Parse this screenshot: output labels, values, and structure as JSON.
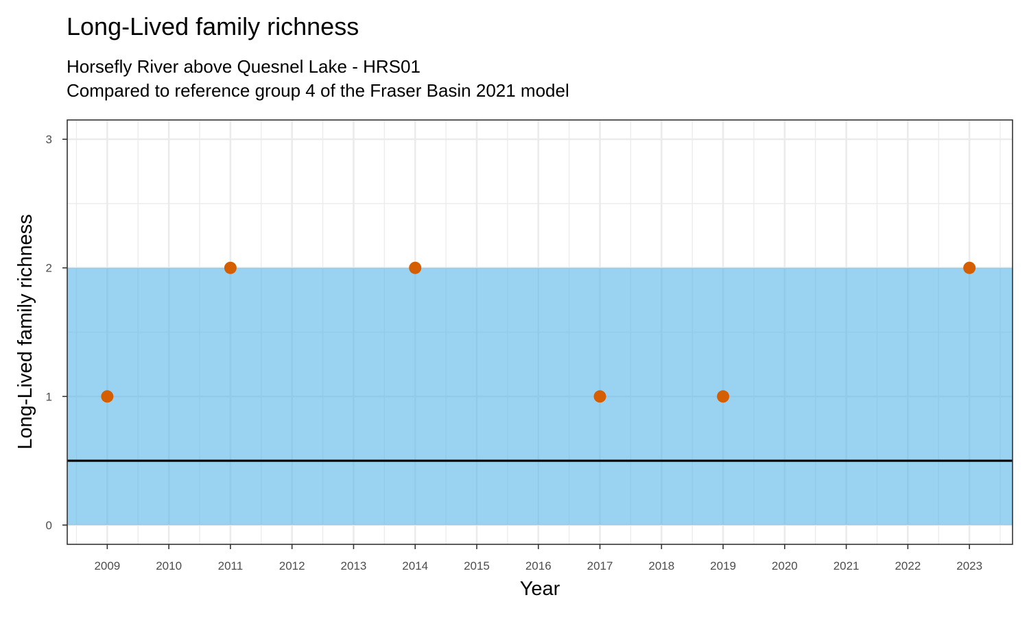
{
  "chart_data": {
    "type": "scatter",
    "title": "Long-Lived family richness",
    "subtitle": [
      "Horsefly River above Quesnel Lake - HRS01",
      "Compared to reference group 4 of the Fraser Basin 2021 model"
    ],
    "xlabel": "Year",
    "ylabel": "Long-Lived family richness",
    "xlim": [
      2008.35,
      2023.7
    ],
    "ylim": [
      -0.15,
      3.15
    ],
    "x_ticks": [
      2009,
      2010,
      2011,
      2012,
      2013,
      2014,
      2015,
      2016,
      2017,
      2018,
      2019,
      2020,
      2021,
      2022,
      2023
    ],
    "y_ticks": [
      0,
      1,
      2,
      3
    ],
    "grid": true,
    "reference_band": {
      "ymin": 0,
      "ymax": 2,
      "color": "#56B4E9"
    },
    "reference_line": {
      "y": 0.5,
      "color": "#000000"
    },
    "point_color": "#D55E00",
    "points": [
      {
        "x": 2009,
        "y": 1
      },
      {
        "x": 2011,
        "y": 2
      },
      {
        "x": 2014,
        "y": 2
      },
      {
        "x": 2017,
        "y": 1
      },
      {
        "x": 2019,
        "y": 1
      },
      {
        "x": 2023,
        "y": 2
      }
    ]
  }
}
